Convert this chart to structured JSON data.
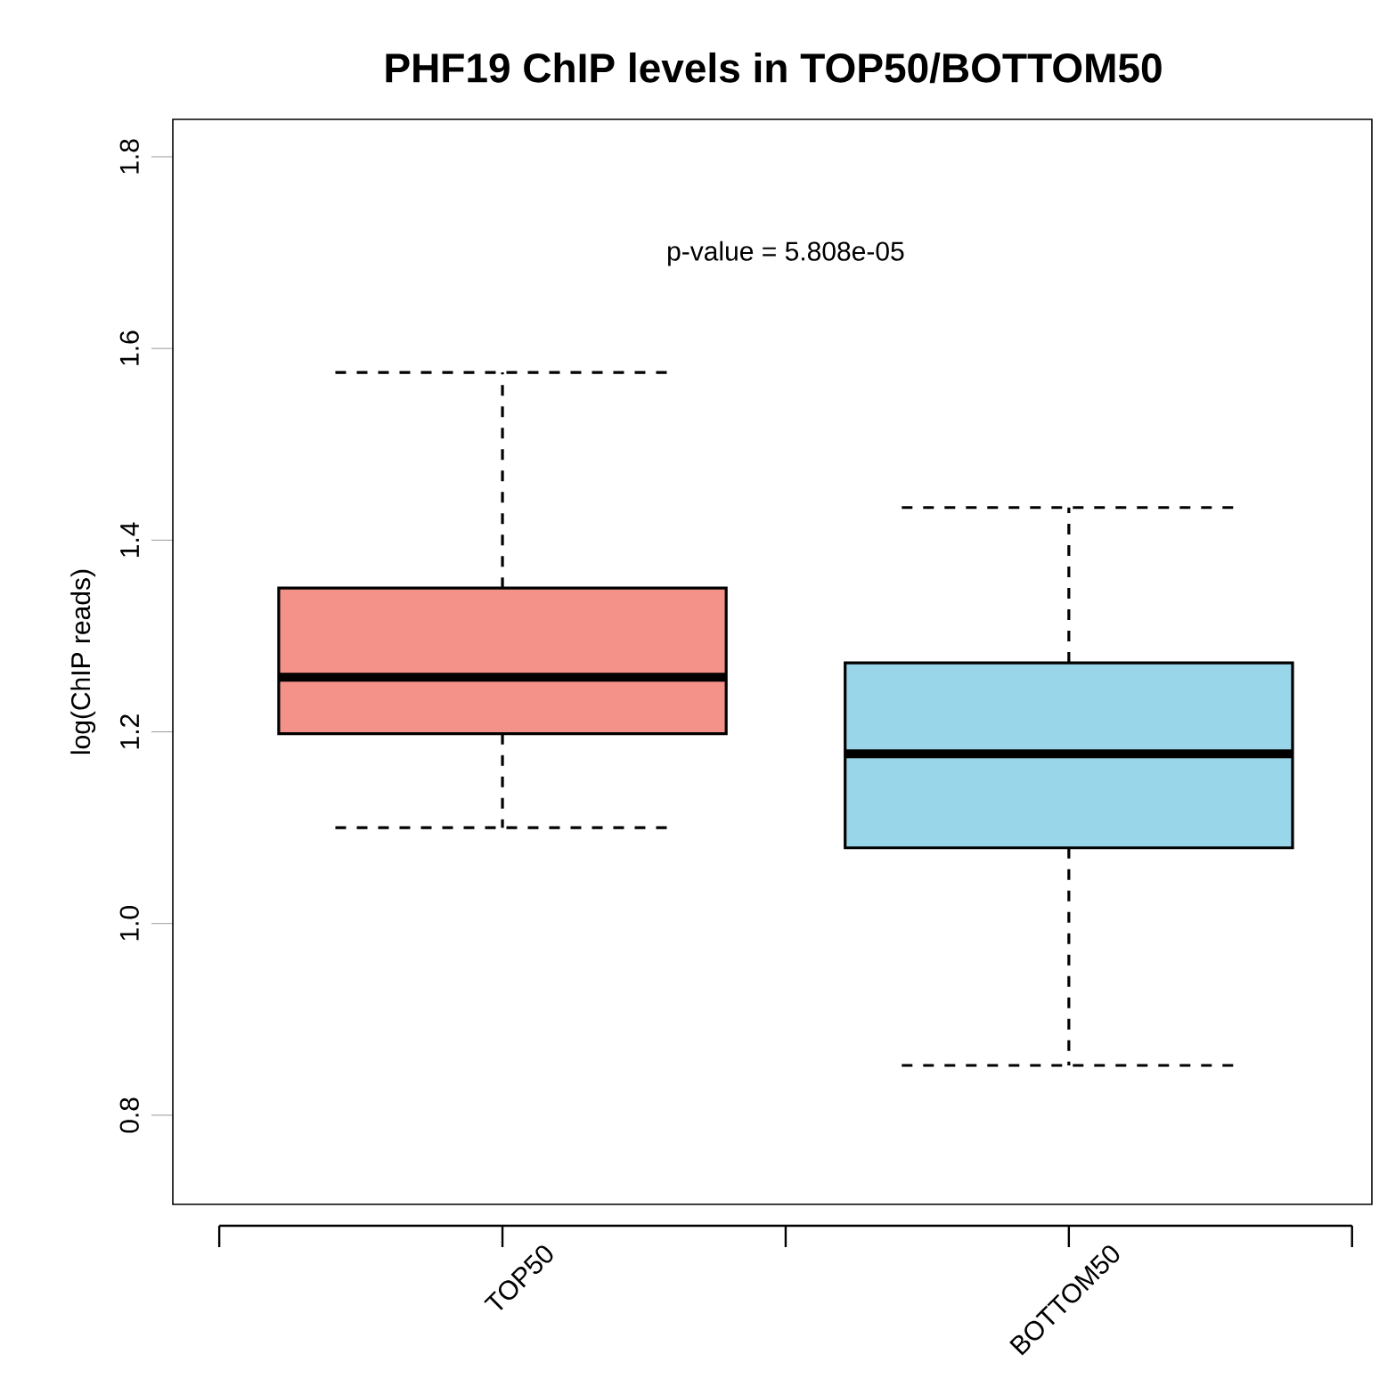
{
  "chart_data": {
    "type": "box",
    "title": "PHF19 ChIP levels in TOP50/BOTTOM50",
    "ylabel": "log(ChIP reads)",
    "categories": [
      "TOP50",
      "BOTTOM50"
    ],
    "series": [
      {
        "colors": [
          "#f4928a",
          "#9ad6ea"
        ],
        "boxes": [
          {
            "low": 1.1,
            "q1": 1.198,
            "median": 1.257,
            "q3": 1.35,
            "high": 1.575
          },
          {
            "low": 0.852,
            "q1": 1.079,
            "median": 1.177,
            "q3": 1.272,
            "high": 1.434
          }
        ]
      }
    ],
    "ylim": [
      0.707,
      1.839
    ],
    "yticks": [
      {
        "value": 0.8,
        "label": "0.8"
      },
      {
        "value": 1.0,
        "label": "1.0"
      },
      {
        "value": 1.2,
        "label": "1.2"
      },
      {
        "value": 1.4,
        "label": "1.4"
      },
      {
        "value": 1.6,
        "label": "1.6"
      },
      {
        "value": 1.8,
        "label": "1.8"
      }
    ],
    "annotations": [
      "p-value = 5.808e-05"
    ]
  }
}
